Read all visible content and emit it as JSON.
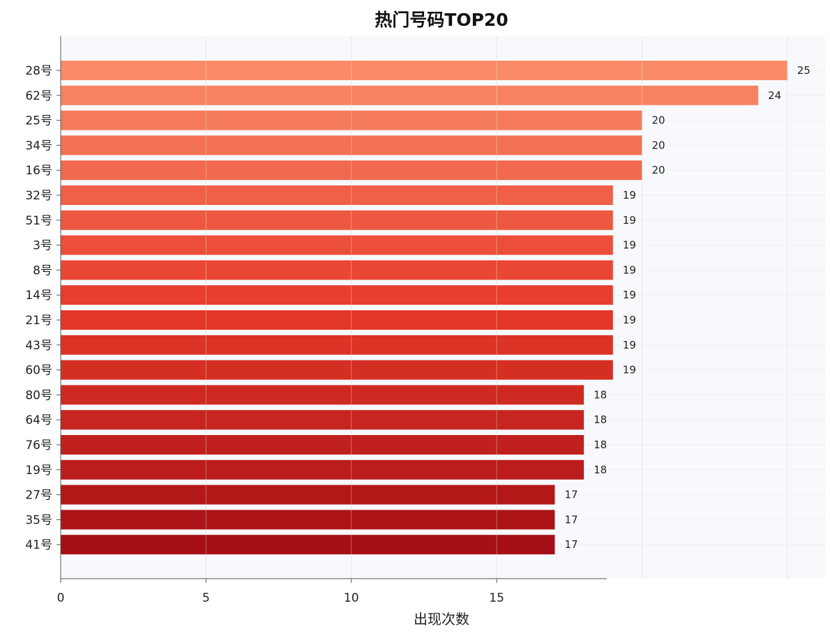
{
  "chart_data": {
    "type": "bar",
    "orientation": "horizontal",
    "title": "热门号码TOP20",
    "xlabel": "出现次数",
    "ylabel": "",
    "categories": [
      "28号",
      "62号",
      "25号",
      "34号",
      "16号",
      "32号",
      "51号",
      "3号",
      "8号",
      "14号",
      "21号",
      "43号",
      "60号",
      "80号",
      "64号",
      "76号",
      "19号",
      "27号",
      "35号",
      "41号"
    ],
    "values": [
      25,
      24,
      20,
      20,
      20,
      19,
      19,
      19,
      19,
      19,
      19,
      19,
      19,
      18,
      18,
      18,
      18,
      17,
      17,
      17
    ],
    "x_ticks": [
      0,
      5,
      10,
      15
    ],
    "xlim": [
      0,
      26.3
    ],
    "grid": true,
    "legend": "none",
    "colors": {
      "bar_high": "#f98b68",
      "bar_mid": "#e63a2a",
      "bar_low": "#a50f15",
      "grid": "#d9dde6",
      "axis": "#555555",
      "plot_background": "#f8f9fc"
    }
  }
}
